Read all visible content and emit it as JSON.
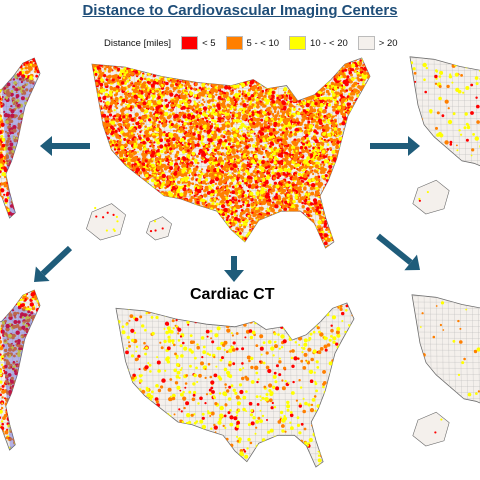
{
  "title": "Distance to Cardiovascular Imaging Centers",
  "legend": {
    "heading": "Distance [miles]",
    "items": [
      {
        "label": "< 5",
        "color": "#ff0000"
      },
      {
        "label": "5 - < 10",
        "color": "#ff7f00"
      },
      {
        "label": "10 - < 20",
        "color": "#ffff00"
      },
      {
        "label": "> 20",
        "color": "#f4f0ec"
      }
    ]
  },
  "modality_label": "Cardiac CT",
  "arrow_color": "#1f5c7a",
  "outline_color": "#6b6b6b"
}
